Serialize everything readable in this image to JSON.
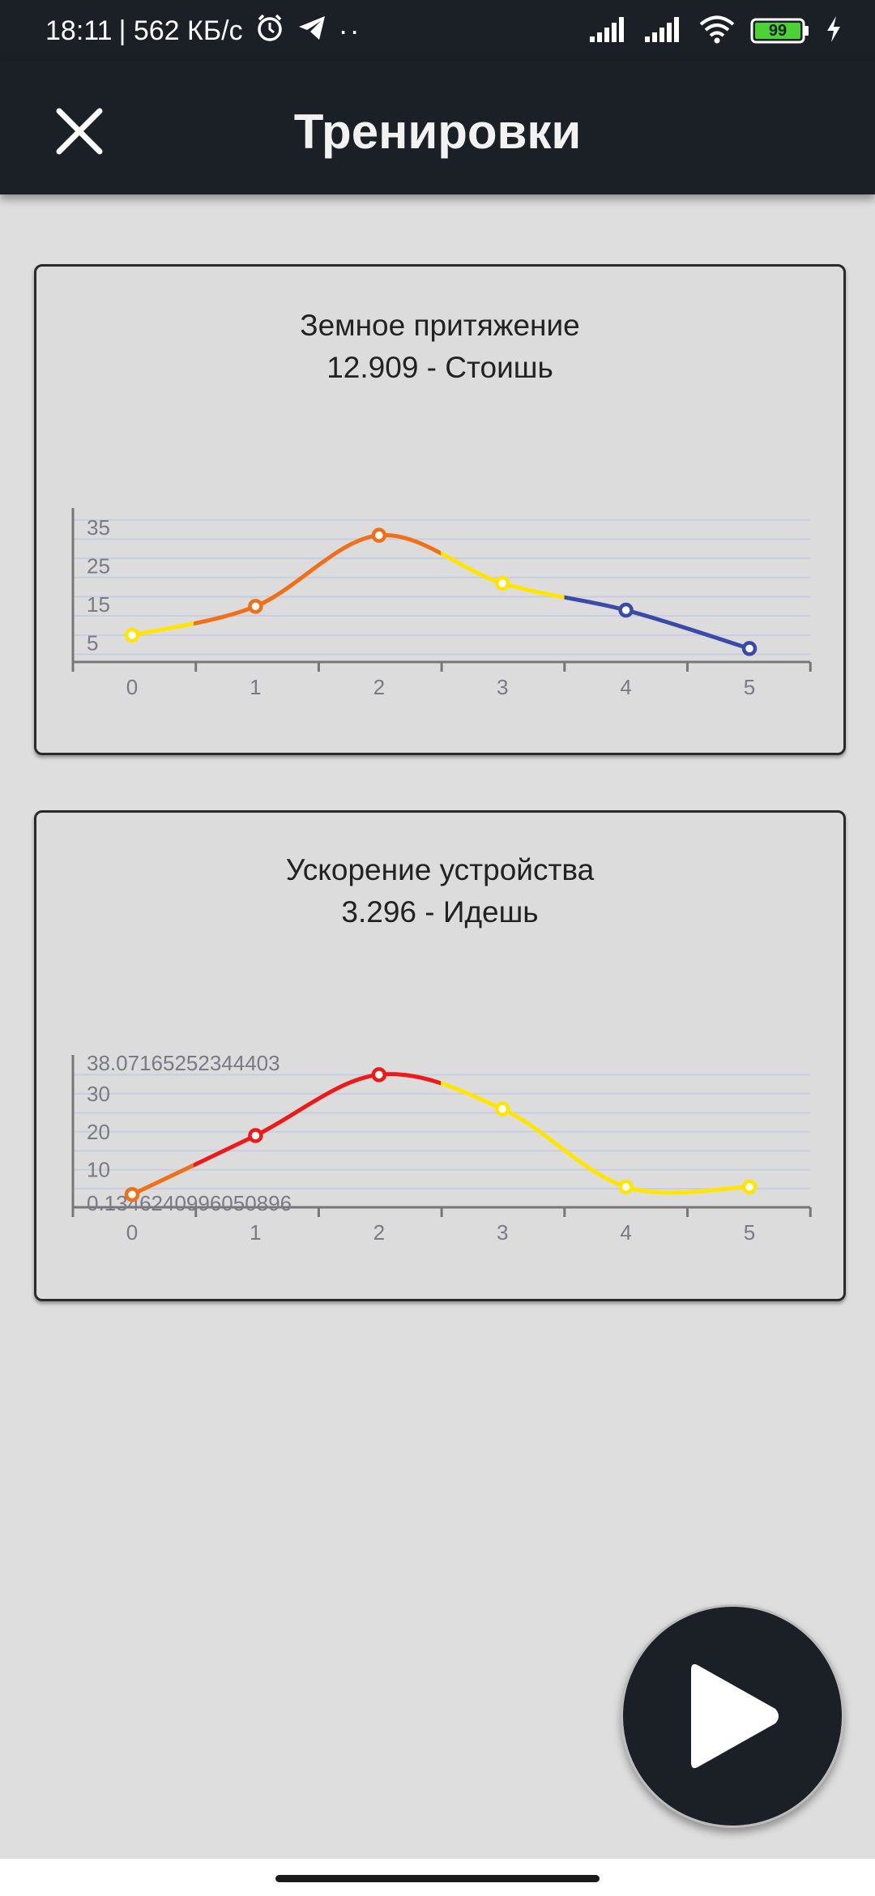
{
  "status_bar": {
    "time": "18:11",
    "network_speed": "| 562 КБ/с",
    "more": "··",
    "battery": "99",
    "icons": [
      "alarm-icon",
      "telegram-icon",
      "signal-icon",
      "signal-icon",
      "wifi-icon",
      "battery-icon",
      "charging-icon"
    ]
  },
  "header": {
    "title": "Тренировки",
    "close_icon": "close-icon"
  },
  "cards": [
    {
      "title": "Земное притяжение",
      "subtitle": "12.909 - Стоишь",
      "y_tick_labels": [
        "35",
        "25",
        "15",
        "5"
      ],
      "x_tick_labels": [
        "0",
        "1",
        "2",
        "3",
        "4",
        "5"
      ]
    },
    {
      "title": "Ускорение устройства",
      "subtitle": "3.296 - Идешь",
      "y_tick_labels": [
        "38.07165252344403",
        "30",
        "20",
        "10",
        "0.1346240996050896"
      ],
      "x_tick_labels": [
        "0",
        "1",
        "2",
        "3",
        "4",
        "5"
      ]
    }
  ],
  "chart_data": [
    {
      "type": "line",
      "title": "Земное притяжение",
      "subtitle": "12.909 - Стоишь",
      "x": [
        0,
        1,
        2,
        3,
        4,
        5
      ],
      "series": [
        {
          "values": [
            7,
            14.5,
            33,
            20.5,
            13.5,
            3.5
          ]
        }
      ],
      "point_colors": [
        "#ffe600",
        "#f07018",
        "#f07018",
        "#ffe600",
        "#3a4aa8",
        "#3a4aa8"
      ],
      "ylim": [
        0,
        38
      ],
      "y_ticks": [
        5,
        15,
        25,
        35
      ],
      "grid": true
    },
    {
      "type": "line",
      "title": "Ускорение устройства",
      "subtitle": "3.296 - Идешь",
      "x": [
        0,
        1,
        2,
        3,
        4,
        5
      ],
      "series": [
        {
          "values": [
            3.5,
            19,
            35,
            26,
            5.5,
            5.5
          ]
        }
      ],
      "point_colors": [
        "#f07018",
        "#ee1a1a",
        "#ee1a1a",
        "#ffe600",
        "#ffe600",
        "#ffe600"
      ],
      "ylim": [
        0.1346240996050896,
        38.07165252344403
      ],
      "y_ticks": [
        10,
        20,
        30
      ],
      "grid": true
    }
  ],
  "fab": {
    "icon": "play-icon"
  },
  "colors": {
    "bar_background": "#1b1f26",
    "page_background": "#dedede",
    "grid": "#c9cde0",
    "axis": "#777777",
    "blue": "#3a4aa8",
    "orange": "#f07018",
    "yellow": "#ffe600",
    "red": "#ee1a1a"
  }
}
